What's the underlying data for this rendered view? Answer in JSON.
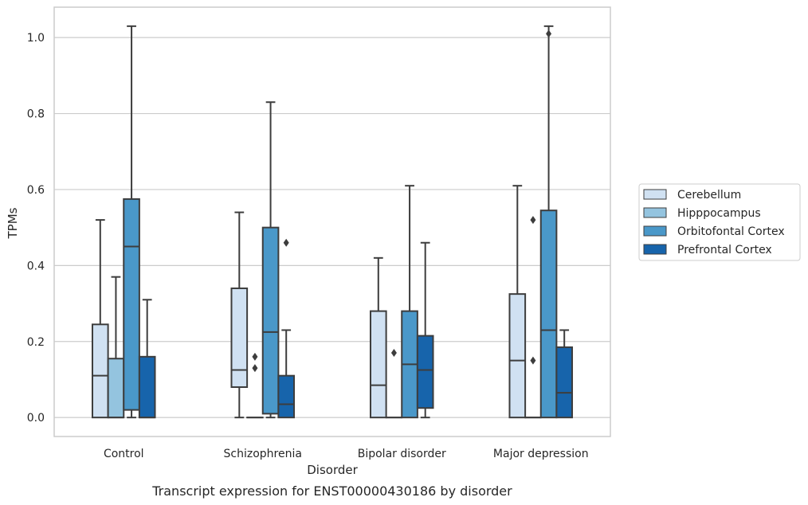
{
  "chart_data": {
    "type": "box",
    "xlabel": "Disorder",
    "ylabel": "TPMs",
    "caption": "Transcript expression for ENST00000430186 by disorder",
    "ylim": [
      -0.05,
      1.08
    ],
    "yticks": [
      0.0,
      0.2,
      0.4,
      0.6,
      0.8,
      1.0
    ],
    "ytick_labels": [
      "0.0",
      "0.2",
      "0.4",
      "0.6",
      "0.8",
      "1.0"
    ],
    "grid": true,
    "legend_position": "right",
    "categories": [
      "Control",
      "Schizophrenia",
      "Bipolar disorder",
      "Major depression"
    ],
    "series": [
      {
        "name": "Cerebellum",
        "color": "#d0e1f2",
        "boxes": [
          {
            "whislo": 0.0,
            "q1": 0.0,
            "med": 0.11,
            "q3": 0.245,
            "whishi": 0.52,
            "fliers": []
          },
          {
            "whislo": 0.0,
            "q1": 0.08,
            "med": 0.125,
            "q3": 0.34,
            "whishi": 0.54,
            "fliers": []
          },
          {
            "whislo": 0.0,
            "q1": 0.0,
            "med": 0.085,
            "q3": 0.28,
            "whishi": 0.42,
            "fliers": []
          },
          {
            "whislo": 0.0,
            "q1": 0.0,
            "med": 0.15,
            "q3": 0.325,
            "whishi": 0.61,
            "fliers": []
          }
        ]
      },
      {
        "name": "Hipppocampus",
        "color": "#94c4df",
        "boxes": [
          {
            "whislo": 0.0,
            "q1": 0.0,
            "med": 0.0,
            "q3": 0.155,
            "whishi": 0.37,
            "fliers": []
          },
          {
            "whislo": 0.0,
            "q1": 0.0,
            "med": 0.0,
            "q3": 0.0,
            "whishi": 0.0,
            "fliers": [
              0.16,
              0.13
            ]
          },
          {
            "whislo": 0.0,
            "q1": 0.0,
            "med": 0.0,
            "q3": 0.0,
            "whishi": 0.0,
            "fliers": [
              0.17
            ]
          },
          {
            "whislo": 0.0,
            "q1": 0.0,
            "med": 0.0,
            "q3": 0.0,
            "whishi": 0.0,
            "fliers": [
              0.52,
              0.15
            ]
          }
        ]
      },
      {
        "name": "Orbitofontal Cortex",
        "color": "#4a98c9",
        "boxes": [
          {
            "whislo": 0.0,
            "q1": 0.02,
            "med": 0.45,
            "q3": 0.575,
            "whishi": 1.03,
            "fliers": []
          },
          {
            "whislo": 0.0,
            "q1": 0.01,
            "med": 0.225,
            "q3": 0.5,
            "whishi": 0.83,
            "fliers": []
          },
          {
            "whislo": 0.0,
            "q1": 0.0,
            "med": 0.14,
            "q3": 0.28,
            "whishi": 0.61,
            "fliers": []
          },
          {
            "whislo": 0.0,
            "q1": 0.0,
            "med": 0.23,
            "q3": 0.545,
            "whishi": 1.03,
            "fliers": [
              1.01
            ]
          }
        ]
      },
      {
        "name": "Prefrontal Cortex",
        "color": "#1764ab",
        "boxes": [
          {
            "whislo": 0.0,
            "q1": 0.0,
            "med": 0.0,
            "q3": 0.16,
            "whishi": 0.31,
            "fliers": []
          },
          {
            "whislo": 0.0,
            "q1": 0.0,
            "med": 0.035,
            "q3": 0.11,
            "whishi": 0.23,
            "fliers": [
              0.46
            ]
          },
          {
            "whislo": 0.0,
            "q1": 0.025,
            "med": 0.125,
            "q3": 0.215,
            "whishi": 0.46,
            "fliers": []
          },
          {
            "whislo": 0.0,
            "q1": 0.0,
            "med": 0.065,
            "q3": 0.185,
            "whishi": 0.23,
            "fliers": []
          }
        ]
      }
    ]
  }
}
